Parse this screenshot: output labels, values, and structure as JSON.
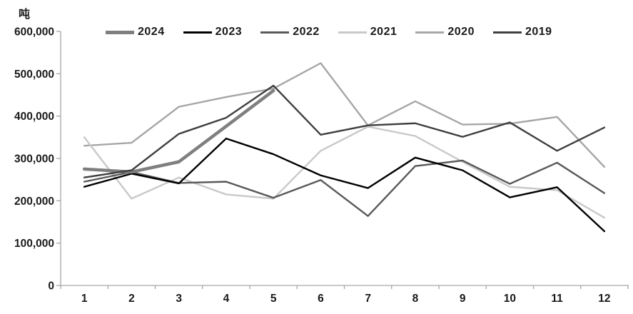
{
  "chart_data": {
    "type": "line",
    "title": "",
    "ylabel": "吨",
    "xlabel": "",
    "ylim": [
      0,
      600000
    ],
    "y_tick_step": 100000,
    "grid": false,
    "legend_position": "top",
    "categories": [
      "1",
      "2",
      "3",
      "4",
      "5",
      "6",
      "7",
      "8",
      "9",
      "10",
      "11",
      "12"
    ],
    "axis_color": "#a6a6a6",
    "label_color": "#1a1a1a",
    "series": [
      {
        "name": "2024",
        "color": "#7f7f7f",
        "thick": true,
        "values": [
          275000,
          268000,
          292000,
          376000,
          460000
        ]
      },
      {
        "name": "2023",
        "color": "#000000",
        "thick": false,
        "values": [
          233000,
          264000,
          241000,
          347000,
          310000,
          260000,
          230000,
          302000,
          272000,
          208000,
          232000,
          128000
        ]
      },
      {
        "name": "2022",
        "color": "#595959",
        "thick": false,
        "values": [
          245000,
          268000,
          242000,
          245000,
          207000,
          249000,
          164000,
          282000,
          295000,
          240000,
          290000,
          218000
        ]
      },
      {
        "name": "2021",
        "color": "#c9c9c9",
        "thick": false,
        "values": [
          350000,
          205000,
          255000,
          215000,
          205000,
          318000,
          375000,
          353000,
          292000,
          233000,
          225000,
          160000
        ]
      },
      {
        "name": "2020",
        "color": "#a6a6a6",
        "thick": false,
        "values": [
          330000,
          337000,
          422000,
          445000,
          465000,
          525000,
          378000,
          435000,
          380000,
          382000,
          398000,
          280000
        ]
      },
      {
        "name": "2019",
        "color": "#3f3f3f",
        "thick": false,
        "values": [
          255000,
          272000,
          358000,
          396000,
          472000,
          356000,
          378000,
          383000,
          351000,
          385000,
          318000,
          373000
        ]
      }
    ]
  }
}
